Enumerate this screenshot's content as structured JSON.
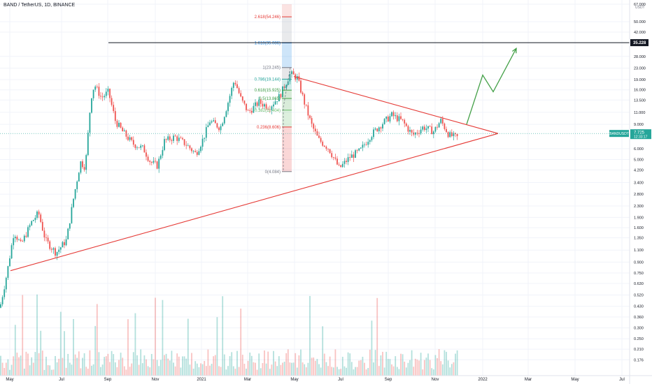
{
  "chart_title": "BAND / TetherUS, 1D, BINANCE",
  "currency_label": "USDT",
  "colors": {
    "up": "#26a69a",
    "down": "#ef5350",
    "trendline": "#e53935",
    "projection": "#43a047",
    "level_line": "#131722",
    "grid": "#f0f3fa"
  },
  "chart_data": {
    "type": "candlestick",
    "title": "BAND / TetherUS, 1D, BINANCE",
    "scale": "log",
    "ylim": [
      0.15,
      67.0
    ],
    "grid": true,
    "x_tick_labels": [
      "May",
      "Jul",
      "Sep",
      "Nov",
      "2021",
      "Mar",
      "May",
      "Jul",
      "Sep",
      "Nov",
      "2022",
      "Mar",
      "May",
      "Jul"
    ],
    "y_tick_labels": [
      {
        "v": 67.0,
        "t": "67.000"
      },
      {
        "v": 50.0,
        "t": "50.000"
      },
      {
        "v": 42.0,
        "t": "42.000"
      },
      {
        "v": 28.0,
        "t": "28.000"
      },
      {
        "v": 23.0,
        "t": "23.000"
      },
      {
        "v": 19.0,
        "t": "19.000"
      },
      {
        "v": 16.0,
        "t": "16.000"
      },
      {
        "v": 13.5,
        "t": "13.500"
      },
      {
        "v": 11.0,
        "t": "11.000"
      },
      {
        "v": 9.0,
        "t": "9.000"
      },
      {
        "v": 6.0,
        "t": "6.000"
      },
      {
        "v": 5.0,
        "t": "5.000"
      },
      {
        "v": 4.2,
        "t": "4.200"
      },
      {
        "v": 3.4,
        "t": "3.400"
      },
      {
        "v": 2.8,
        "t": "2.800"
      },
      {
        "v": 2.3,
        "t": "2.300"
      },
      {
        "v": 1.9,
        "t": "1.900"
      },
      {
        "v": 1.6,
        "t": "1.600"
      },
      {
        "v": 1.35,
        "t": "1.350"
      },
      {
        "v": 1.1,
        "t": "1.100"
      },
      {
        "v": 0.9,
        "t": "0.900"
      },
      {
        "v": 0.75,
        "t": "0.750"
      },
      {
        "v": 0.63,
        "t": "0.630"
      },
      {
        "v": 0.52,
        "t": "0.520"
      },
      {
        "v": 0.43,
        "t": "0.430"
      },
      {
        "v": 0.36,
        "t": "0.360"
      },
      {
        "v": 0.3,
        "t": "0.300"
      },
      {
        "v": 0.25,
        "t": "0.250"
      },
      {
        "v": 0.21,
        "t": "0.210"
      },
      {
        "v": 0.176,
        "t": "0.176"
      }
    ],
    "price_path": [
      [
        0,
        0.42
      ],
      [
        10,
        0.75
      ],
      [
        20,
        1.5
      ],
      [
        30,
        1.2
      ],
      [
        45,
        1.75
      ],
      [
        55,
        2.05
      ],
      [
        65,
        1.3
      ],
      [
        80,
        1.05
      ],
      [
        95,
        1.3
      ],
      [
        105,
        2.6
      ],
      [
        115,
        4.8
      ],
      [
        122,
        4.4
      ],
      [
        130,
        14.0
      ],
      [
        135,
        17.5
      ],
      [
        145,
        14.0
      ],
      [
        155,
        15.5
      ],
      [
        165,
        9.5
      ],
      [
        175,
        8.0
      ],
      [
        190,
        6.5
      ],
      [
        205,
        6.0
      ],
      [
        215,
        4.8
      ],
      [
        225,
        4.5
      ],
      [
        235,
        6.8
      ],
      [
        250,
        7.3
      ],
      [
        265,
        6.5
      ],
      [
        280,
        5.5
      ],
      [
        290,
        7.0
      ],
      [
        300,
        9.5
      ],
      [
        315,
        8.5
      ],
      [
        325,
        12.5
      ],
      [
        335,
        19.0
      ],
      [
        345,
        13.5
      ],
      [
        355,
        11.0
      ],
      [
        370,
        13.0
      ],
      [
        385,
        12.0
      ],
      [
        400,
        14.5
      ],
      [
        415,
        21.0
      ],
      [
        425,
        19.5
      ],
      [
        435,
        13.0
      ],
      [
        445,
        9.0
      ],
      [
        455,
        7.0
      ],
      [
        470,
        6.0
      ],
      [
        485,
        4.3
      ],
      [
        500,
        5.2
      ],
      [
        515,
        5.8
      ],
      [
        530,
        7.5
      ],
      [
        545,
        9.0
      ],
      [
        560,
        10.5
      ],
      [
        575,
        9.5
      ],
      [
        590,
        7.5
      ],
      [
        605,
        8.6
      ],
      [
        620,
        8.0
      ],
      [
        630,
        9.6
      ],
      [
        642,
        7.5
      ],
      [
        655,
        7.2
      ]
    ],
    "volume": "per-bar volume histogram along bottom (values not labeled)",
    "last_price": {
      "symbol": "BANDUSDT",
      "value": 7.725,
      "label": "7.725",
      "countdown": "12:33:17"
    },
    "horizontal_level": {
      "value": 35.228,
      "label": "35.228"
    },
    "fib_levels": [
      {
        "label": "2.618(54.246)",
        "value": 54.246,
        "color": "#e53935"
      },
      {
        "label": "1.618(35.086)",
        "value": 35.086,
        "color": "#1e88e5"
      },
      {
        "label": "1(23.245)",
        "value": 23.245,
        "color": "#787b86"
      },
      {
        "label": "0.786(19.144)",
        "value": 19.144,
        "color": "#26a69a"
      },
      {
        "label": "0.618(15.925)",
        "value": 15.925,
        "color": "#43a047"
      },
      {
        "label": "0.5(13.865)",
        "value": 13.865,
        "color": "#43a047"
      },
      {
        "label": "0.382(11.404)",
        "value": 11.404,
        "color": "#66bb6a"
      },
      {
        "label": "0.236(8.606)",
        "value": 8.606,
        "color": "#e53935"
      },
      {
        "label": "0(4.084)",
        "value": 4.084,
        "color": "#787b86"
      }
    ],
    "trendlines": [
      {
        "name": "upper",
        "from": [
          420,
          20.0
        ],
        "to": [
          700,
          8.0
        ]
      },
      {
        "name": "lower",
        "from": [
          15,
          0.78
        ],
        "to": [
          700,
          8.0
        ]
      }
    ],
    "projection_path": [
      [
        667,
        9.0
      ],
      [
        690,
        20.5
      ],
      [
        705,
        15.5
      ],
      [
        738,
        32.0
      ]
    ]
  }
}
